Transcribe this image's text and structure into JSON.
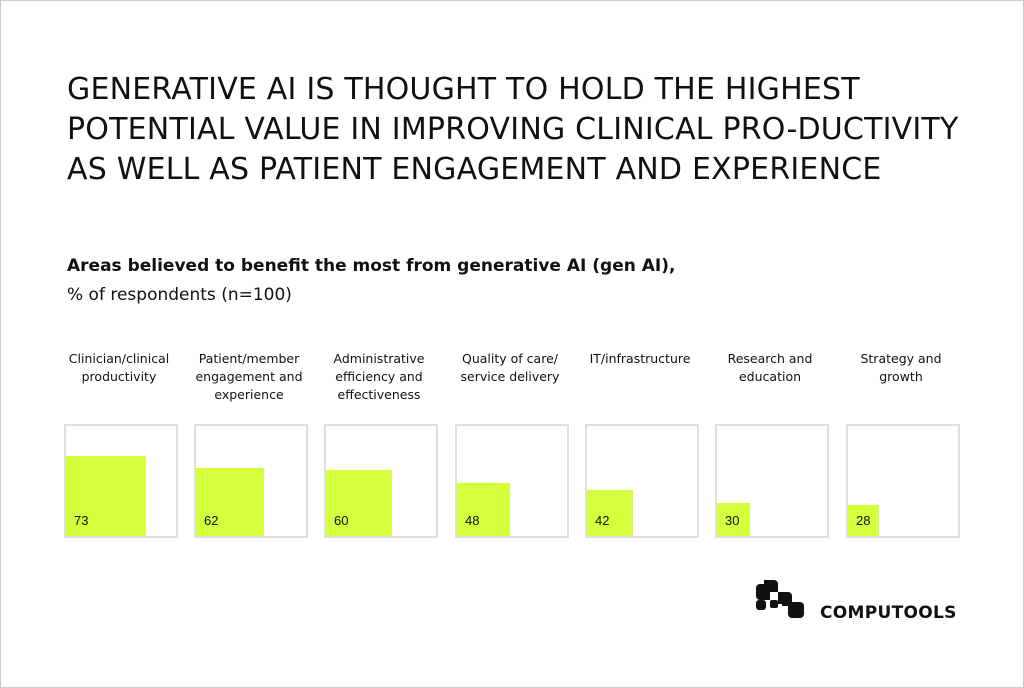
{
  "chart_data": {
    "type": "bar",
    "title": "GENERATIVE AI IS THOUGHT TO HOLD THE HIGHEST POTENTIAL VALUE IN IMPROVING CLINICAL PRO-DUCTIVITY AS WELL AS PATIENT ENGAGEMENT AND EXPERIENCE",
    "subtitle_bold": "Areas believed to benefit the most from generative AI (gen AI),",
    "subtitle": "% of respondents (n=100)",
    "categories": [
      "Clinician/clinical productivity",
      "Patient/member engagement and experience",
      "Administrative efficiency and effectiveness",
      "Quality of care/ service delivery",
      "IT/infrastructure",
      "Research and education",
      "Strategy and growth"
    ],
    "values": [
      73,
      62,
      60,
      48,
      42,
      30,
      28
    ],
    "ylim": [
      0,
      100
    ],
    "bar_color": "#d4ff3c",
    "box_color": "#e0e0e0"
  },
  "brand": {
    "name": "COMPUTOOLS",
    "icon": "computools-logo-icon"
  }
}
